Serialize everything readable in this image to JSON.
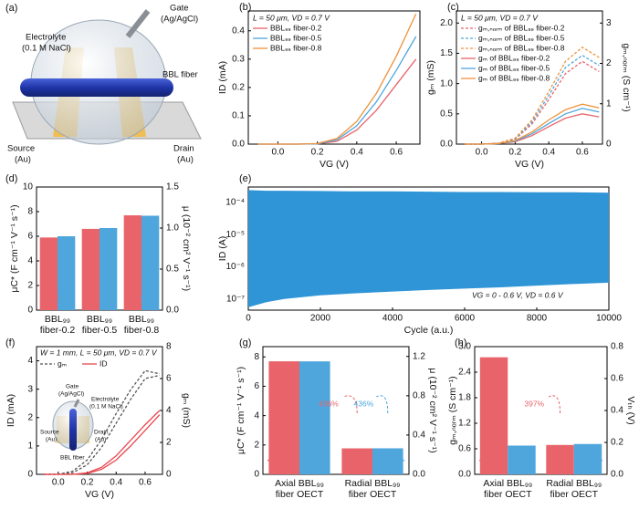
{
  "illustration": {
    "panel": "(a)",
    "electrolyte": [
      "Electrolyte",
      "(0.1 M NaCl)"
    ],
    "gate": [
      "Gate",
      "(Ag/AgCl)"
    ],
    "fiber": "BBL fiber",
    "source": [
      "Source",
      "(Au)"
    ],
    "drain": [
      "Drain",
      "(Au)"
    ]
  },
  "chart_data": [
    {
      "panel": "(b)",
      "type": "line",
      "annotation": "L = 50 μm, VD = 0.7 V",
      "xlabel": "VG (V)",
      "ylabel": "ID (mA)",
      "x": [
        -0.1,
        0,
        0.1,
        0.2,
        0.3,
        0.4,
        0.5,
        0.6,
        0.7
      ],
      "xlim": [
        -0.15,
        0.72
      ],
      "xticks": [
        {
          "value": 0,
          "label": "0.0"
        },
        0.2,
        0.4,
        0.6
      ],
      "ylim": [
        0,
        0.47
      ],
      "yticks": [
        {
          "value": 0,
          "label": "0.0"
        },
        0.1,
        0.2,
        0.3,
        0.4
      ],
      "legend": "upper left",
      "series": [
        {
          "name": "BBL₉₉ fiber-0.2",
          "color": "#e8646a",
          "values": [
            0,
            0,
            0,
            0.001,
            0.01,
            0.05,
            0.12,
            0.21,
            0.3
          ]
        },
        {
          "name": "BBL₉₉ fiber-0.5",
          "color": "#4ea6dc",
          "values": [
            0,
            0,
            0,
            0.001,
            0.015,
            0.065,
            0.15,
            0.26,
            0.38
          ]
        },
        {
          "name": "BBL₉₉ fiber-0.8",
          "color": "#f0923a",
          "values": [
            0,
            0,
            0,
            0.002,
            0.02,
            0.08,
            0.18,
            0.31,
            0.46
          ]
        }
      ]
    },
    {
      "panel": "(c)",
      "type": "line",
      "annotation": "L = 50 μm, VD = 0.7 V",
      "xlabel": "VG (V)",
      "ylabel": "gₘ (mS)",
      "y2label": "gₘ,ₙₒᵣₘ (S cm⁻¹)",
      "x": [
        -0.1,
        0,
        0.1,
        0.2,
        0.3,
        0.4,
        0.5,
        0.6,
        0.7
      ],
      "xlim": [
        -0.15,
        0.72
      ],
      "xticks": [
        {
          "value": 0,
          "label": "0.0"
        },
        0.2,
        0.4,
        0.6
      ],
      "ylim": [
        0,
        2.2
      ],
      "yticks": [
        {
          "value": 0,
          "label": "0.0"
        },
        0.5,
        {
          "value": 1,
          "label": "1.0"
        },
        1.5,
        {
          "value": 2,
          "label": "2.0"
        }
      ],
      "y2lim": [
        0,
        3.3
      ],
      "y2ticks": [
        0,
        1,
        2,
        3
      ],
      "legend": "upper left",
      "series": [
        {
          "name": "gₘ,ₙₒᵣₘ of BBL₉₉ fiber-0.2",
          "color": "#e8646a",
          "dash": true,
          "axis": "y2",
          "values": [
            0,
            0,
            0.02,
            0.12,
            0.5,
            1.1,
            1.75,
            2.05,
            1.8
          ]
        },
        {
          "name": "gₘ,ₙₒᵣₘ of BBL₉₉ fiber-0.5",
          "color": "#4ea6dc",
          "dash": true,
          "axis": "y2",
          "values": [
            0,
            0,
            0.02,
            0.13,
            0.55,
            1.2,
            1.9,
            2.2,
            1.95
          ]
        },
        {
          "name": "gₘ,ₙₒᵣₘ of BBL₉₉ fiber-0.8",
          "color": "#f0923a",
          "dash": true,
          "axis": "y2",
          "values": [
            0,
            0,
            0.02,
            0.15,
            0.6,
            1.3,
            2.05,
            2.4,
            2.15
          ]
        },
        {
          "name": "gₘ of BBL₉₉ fiber-0.2",
          "color": "#e8646a",
          "values": [
            0,
            0,
            0.01,
            0.04,
            0.14,
            0.29,
            0.43,
            0.5,
            0.45
          ]
        },
        {
          "name": "gₘ of BBL₉₉ fiber-0.5",
          "color": "#4ea6dc",
          "values": [
            0,
            0,
            0.01,
            0.05,
            0.17,
            0.34,
            0.5,
            0.59,
            0.53
          ]
        },
        {
          "name": "gₘ of BBL₉₉ fiber-0.8",
          "color": "#f0923a",
          "values": [
            0,
            0,
            0.01,
            0.06,
            0.2,
            0.4,
            0.57,
            0.66,
            0.6
          ]
        }
      ]
    },
    {
      "panel": "(d)",
      "type": "bar",
      "ylabel": "μC* (F cm⁻¹ V⁻¹ s⁻¹)",
      "y2label": "μ (10⁻² cm² V⁻¹ s⁻¹)",
      "categories": [
        [
          "BBL₉₉",
          "fiber-0.2"
        ],
        [
          "BBL₉₉",
          "fiber-0.5"
        ],
        [
          "BBL₉₉",
          "fiber-0.8"
        ]
      ],
      "ylim": [
        0,
        10
      ],
      "yticks": [
        0,
        2,
        4,
        6,
        8,
        10
      ],
      "y2lim": [
        0,
        1.5
      ],
      "y2ticks": [
        {
          "value": 0,
          "label": "0.0"
        },
        0.5,
        {
          "value": 1,
          "label": "1.0"
        },
        1.5
      ],
      "series": [
        {
          "color": "#e8646a",
          "values": [
            5.9,
            6.6,
            7.7
          ]
        },
        {
          "color": "#4ea6dc",
          "axis": "y2",
          "values": [
            0.9,
            1.0,
            1.15
          ]
        }
      ]
    },
    {
      "panel": "(e)",
      "type": "band",
      "xlabel": "Cycle (a.u.)",
      "ylabel": "ID (A)",
      "annotation": "VG = 0 - 0.6 V, VD = 0.6 V",
      "log_y": true,
      "color": "#2f95d6",
      "x": [
        0,
        500,
        1000,
        2000,
        3000,
        4000,
        5000,
        6000,
        7000,
        8000,
        9000,
        10000
      ],
      "upper": [
        0.00024,
        0.00023,
        0.00023,
        0.000225,
        0.00022,
        0.00022,
        0.000215,
        0.00021,
        0.00021,
        0.000205,
        0.000205,
        0.0002
      ],
      "lower": [
        5.5e-08,
        8e-08,
        1e-07,
        1.3e-07,
        1.5e-07,
        1.7e-07,
        1.9e-07,
        2.1e-07,
        2.3e-07,
        2.6e-07,
        2.9e-07,
        3.2e-07
      ],
      "xlim": [
        0,
        10000
      ],
      "xticks": [
        0,
        2000,
        4000,
        6000,
        8000,
        10000
      ],
      "ylim": [
        4.5e-08,
        0.0003
      ],
      "yticks": [
        {
          "value": 1e-07,
          "label": "10⁻⁷"
        },
        {
          "value": 1e-06,
          "label": "10⁻⁶"
        },
        {
          "value": 1e-05,
          "label": "10⁻⁵"
        },
        {
          "value": 0.0001,
          "label": "10⁻⁴"
        }
      ]
    },
    {
      "panel": "(f)",
      "type": "line",
      "annotation": "W = 1 mm, L = 50 μm, VD = 0.7 V",
      "xlabel": "VG (V)",
      "ylabel": "ID (mA)",
      "y2label": "gₘ (mS)",
      "inset": {
        "gate": [
          "Gate",
          "(Ag/AgCl)"
        ],
        "electrolyte": [
          "Electrolyte",
          "(0.1 M NaCl)"
        ],
        "source": [
          "Source",
          "(Au)"
        ],
        "drain": [
          "Drain",
          "(Au)"
        ],
        "fiber": "BBL fiber"
      },
      "x": [
        -0.1,
        0,
        0.1,
        0.2,
        0.3,
        0.4,
        0.5,
        0.6,
        0.7
      ],
      "xlim": [
        -0.15,
        0.72
      ],
      "xticks": [
        {
          "value": 0,
          "label": "0.0"
        },
        0.2,
        0.4,
        0.6
      ],
      "ylim": [
        0,
        4.5
      ],
      "yticks": [
        0,
        1,
        2,
        3,
        4
      ],
      "y2lim": [
        0,
        8
      ],
      "y2ticks": [
        0,
        2,
        4,
        6,
        8
      ],
      "legend": "upper left",
      "series": [
        {
          "name": "gₘ",
          "color": "#555555",
          "dash": true,
          "axis": "y2",
          "values": [
            0,
            0,
            0.2,
            0.9,
            2.2,
            3.8,
            5.3,
            6.5,
            6.3
          ],
          "values_return": [
            0,
            0,
            0.1,
            0.6,
            1.7,
            3.2,
            4.7,
            6.0,
            6.2
          ]
        },
        {
          "name": "ID",
          "color": "#e8464e",
          "values": [
            0,
            0,
            0,
            0.05,
            0.25,
            0.65,
            1.2,
            1.75,
            2.25
          ],
          "values_return": [
            0,
            0,
            0,
            0.03,
            0.18,
            0.5,
            1.0,
            1.55,
            2.1
          ]
        }
      ]
    },
    {
      "panel": "(g)",
      "type": "bar",
      "ylabel": "μC* (F cm⁻¹ V⁻¹ s⁻¹)",
      "y2label": "μ (10⁻² cm² V⁻¹ s⁻¹)",
      "categories": [
        [
          "Axial BBL₉₉",
          "fiber OECT"
        ],
        [
          "Radial BBL₉₉",
          "fiber OECT"
        ]
      ],
      "ylim": [
        0,
        8.7
      ],
      "yticks": [
        0,
        2,
        4,
        6,
        8
      ],
      "y2lim": [
        0,
        1.3
      ],
      "y2ticks": [
        {
          "value": 0,
          "label": "0.0"
        },
        0.4,
        0.8,
        1.2
      ],
      "series": [
        {
          "color": "#e8646a",
          "values": [
            7.7,
            1.77
          ]
        },
        {
          "color": "#4ea6dc",
          "axis": "y2",
          "values": [
            1.15,
            0.265
          ]
        }
      ],
      "annotations": [
        {
          "text": "436%",
          "color": "#e8646a"
        },
        {
          "text": "436%",
          "color": "#4ea6dc"
        }
      ]
    },
    {
      "panel": "(h)",
      "type": "bar",
      "ylabel": "gₘ,ₙₒᵣₘ (S cm⁻¹)",
      "y2label": "Vₜₕ (V)",
      "categories": [
        [
          "Axial BBL₉₉",
          "fiber OECT"
        ],
        [
          "Radial BBL₉₉",
          "fiber OECT"
        ]
      ],
      "ylim": [
        0,
        3
      ],
      "yticks": [
        {
          "value": 0,
          "label": "0.0"
        },
        0.6,
        1.2,
        1.8,
        2.4,
        {
          "value": 3,
          "label": "3.0"
        }
      ],
      "y2lim": [
        0,
        0.8
      ],
      "y2ticks": [
        {
          "value": 0,
          "label": "0.0"
        },
        0.2,
        0.4,
        0.6,
        0.8
      ],
      "series": [
        {
          "color": "#e8646a",
          "values": [
            2.75,
            0.69
          ]
        },
        {
          "color": "#4ea6dc",
          "axis": "y2",
          "values": [
            0.18,
            0.19
          ]
        }
      ],
      "annotations": [
        {
          "text": "397%",
          "color": "#e8646a"
        }
      ]
    }
  ]
}
